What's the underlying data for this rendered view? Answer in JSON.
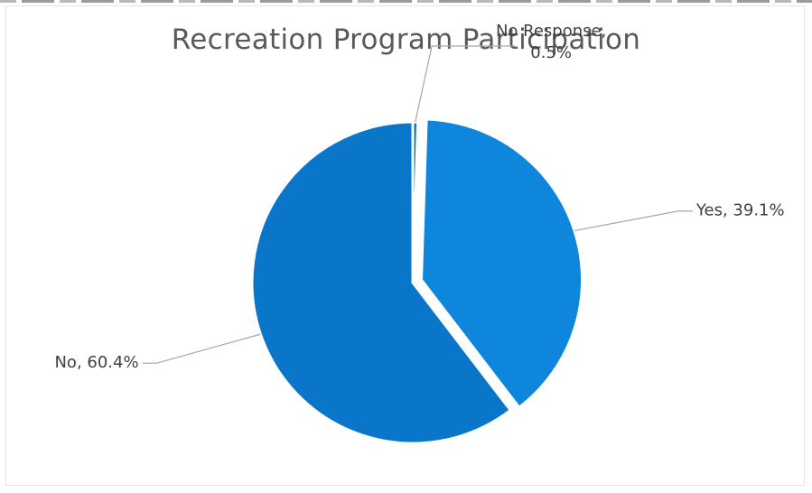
{
  "chart_data": {
    "type": "pie",
    "title": "Recreation Program Participation",
    "slices": [
      {
        "label": "No Response",
        "value": 0.5,
        "display": "No Response,\n0.5%",
        "color": "#0e7ea3",
        "exploded": false
      },
      {
        "label": "Yes",
        "value": 39.1,
        "display": "Yes, 39.1%",
        "color": "#0d86dc",
        "exploded": true
      },
      {
        "label": "No",
        "value": 60.4,
        "display": "No, 60.4%",
        "color": "#0a76c9",
        "exploded": false
      }
    ],
    "start_angle_deg": 0,
    "direction": "clockwise",
    "legend": "none",
    "slice_border_color": "#ffffff"
  }
}
